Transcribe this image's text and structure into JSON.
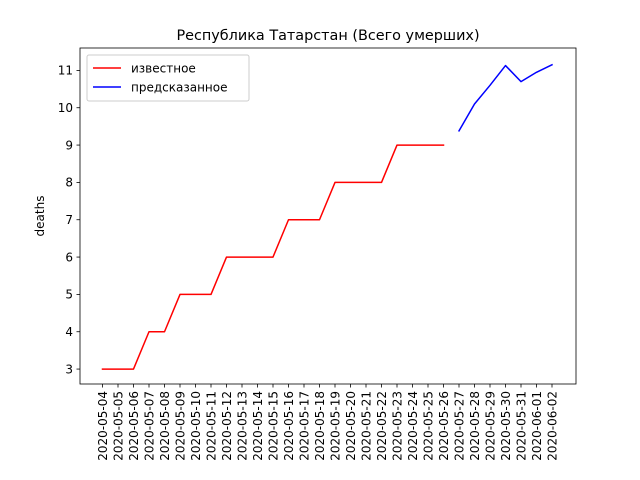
{
  "chart_data": {
    "type": "line",
    "title": "Республика Татарстан (Всего умерших)",
    "xlabel": "",
    "ylabel": "deaths",
    "x": [
      "2020-05-04",
      "2020-05-05",
      "2020-05-06",
      "2020-05-07",
      "2020-05-08",
      "2020-05-09",
      "2020-05-10",
      "2020-05-11",
      "2020-05-12",
      "2020-05-13",
      "2020-05-14",
      "2020-05-15",
      "2020-05-16",
      "2020-05-17",
      "2020-05-18",
      "2020-05-19",
      "2020-05-20",
      "2020-05-21",
      "2020-05-22",
      "2020-05-23",
      "2020-05-24",
      "2020-05-25",
      "2020-05-26",
      "2020-05-27",
      "2020-05-28",
      "2020-05-29",
      "2020-05-30",
      "2020-05-31",
      "2020-06-01",
      "2020-06-02"
    ],
    "ylim": [
      2.6,
      11.6
    ],
    "yticks": [
      3,
      4,
      5,
      6,
      7,
      8,
      9,
      10,
      11
    ],
    "grid": false,
    "legend_position": "upper-left",
    "series": [
      {
        "name": "известное",
        "color": "#ff0000",
        "points": [
          [
            "2020-05-04",
            3
          ],
          [
            "2020-05-05",
            3
          ],
          [
            "2020-05-06",
            3
          ],
          [
            "2020-05-07",
            4
          ],
          [
            "2020-05-08",
            4
          ],
          [
            "2020-05-09",
            5
          ],
          [
            "2020-05-10",
            5
          ],
          [
            "2020-05-11",
            5
          ],
          [
            "2020-05-12",
            6
          ],
          [
            "2020-05-13",
            6
          ],
          [
            "2020-05-14",
            6
          ],
          [
            "2020-05-15",
            6
          ],
          [
            "2020-05-16",
            7
          ],
          [
            "2020-05-17",
            7
          ],
          [
            "2020-05-18",
            7
          ],
          [
            "2020-05-19",
            8
          ],
          [
            "2020-05-20",
            8
          ],
          [
            "2020-05-21",
            8
          ],
          [
            "2020-05-22",
            8
          ],
          [
            "2020-05-23",
            9
          ],
          [
            "2020-05-24",
            9
          ],
          [
            "2020-05-25",
            9
          ],
          [
            "2020-05-26",
            9
          ]
        ]
      },
      {
        "name": "предсказанное",
        "color": "#0000ff",
        "points": [
          [
            "2020-05-27",
            9.38
          ],
          [
            "2020-05-28",
            10.1
          ],
          [
            "2020-05-29",
            10.6
          ],
          [
            "2020-05-30",
            11.13
          ],
          [
            "2020-05-31",
            10.7
          ],
          [
            "2020-06-01",
            10.95
          ],
          [
            "2020-06-02",
            11.15
          ]
        ]
      }
    ]
  }
}
